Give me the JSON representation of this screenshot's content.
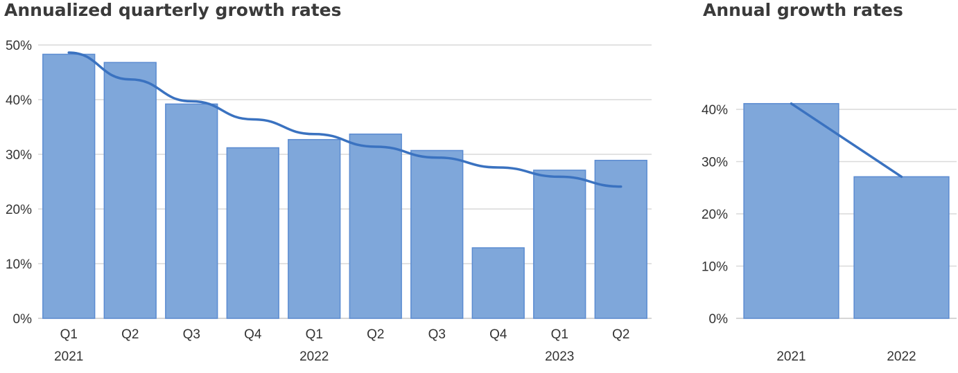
{
  "colors": {
    "bar": "#7fa7da",
    "bar_edge": "#5b8bd1",
    "trend": "#3a72c0",
    "grid": "#d9d9d9"
  },
  "chart_data": [
    {
      "type": "bar",
      "title": "Annualized quarterly growth rates",
      "categories": [
        "Q1",
        "Q2",
        "Q3",
        "Q4",
        "Q1",
        "Q2",
        "Q3",
        "Q4",
        "Q1",
        "Q2"
      ],
      "year_labels": [
        {
          "label": "2021",
          "index": 0
        },
        {
          "label": "2022",
          "index": 4
        },
        {
          "label": "2023",
          "index": 8
        }
      ],
      "values": [
        48.3,
        46.8,
        39.2,
        31.2,
        32.7,
        33.7,
        30.7,
        12.9,
        27.1,
        28.9
      ],
      "trend": [
        48.6,
        43.7,
        39.7,
        36.4,
        33.7,
        31.4,
        29.4,
        27.6,
        25.9,
        24.1
      ],
      "ylim": [
        0,
        50
      ],
      "yticks": [
        "0%",
        "10%",
        "20%",
        "30%",
        "40%",
        "50%"
      ],
      "grid": true,
      "legend": "none"
    },
    {
      "type": "bar",
      "title": "Annual growth rates",
      "categories": [
        "2021",
        "2022"
      ],
      "values": [
        41.1,
        27.1
      ],
      "trend": [
        41.1,
        27.1
      ],
      "ylim": [
        0,
        40
      ],
      "yticks": [
        "0%",
        "10%",
        "20%",
        "30%",
        "40%"
      ],
      "grid": true,
      "legend": "none"
    }
  ]
}
